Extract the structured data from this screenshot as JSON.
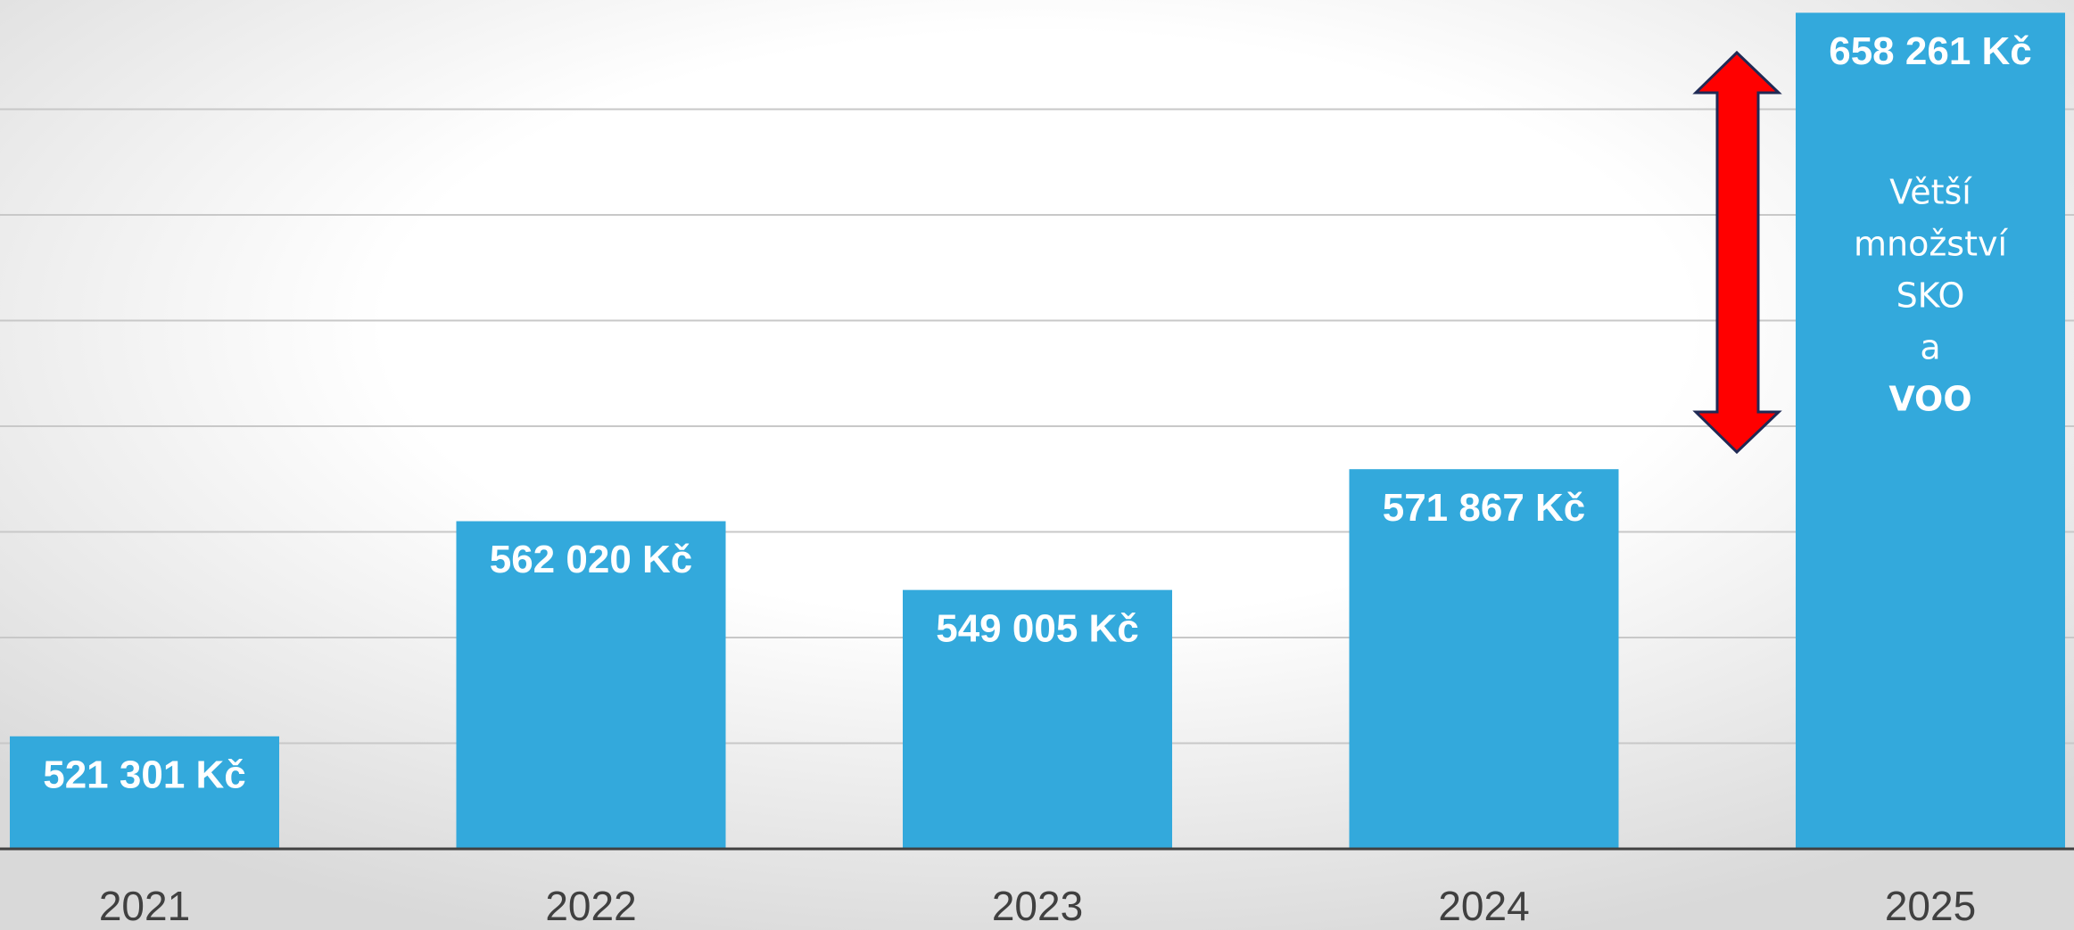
{
  "chart_data": {
    "type": "bar",
    "categories": [
      "2021",
      "2022",
      "2023",
      "2024",
      "2025"
    ],
    "values": [
      521301,
      562020,
      549005,
      571867,
      658261
    ],
    "value_labels": [
      "521 301 Kč",
      "562 020 Kč",
      "549 005 Kč",
      "571 867 Kč",
      "658 261 Kč"
    ],
    "color": "#33a9dc",
    "ylim": [
      500000,
      660000
    ],
    "yticks": [
      520000,
      540000,
      560000,
      580000,
      600000,
      620000,
      640000
    ],
    "grid": true,
    "annotation": [
      "Větší",
      "množství",
      "SKO",
      "a",
      "VOO"
    ]
  }
}
